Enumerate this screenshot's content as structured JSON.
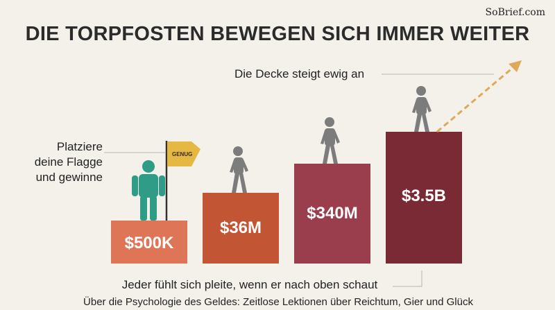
{
  "brand": "SoBrief.com",
  "title": "DIE TORPFOSTEN BEWEGEN SICH IMMER WEITER",
  "ceiling_label": "Die Decke steigt ewig an",
  "left_label_lines": [
    "Platziere",
    "deine Flagge",
    "und gewinne"
  ],
  "flag_text": "GENUG",
  "bars": [
    {
      "label": "$500K",
      "color": "#de7557"
    },
    {
      "label": "$36M",
      "color": "#c25634"
    },
    {
      "label": "$340M",
      "color": "#9a3d4c"
    },
    {
      "label": "$3.5B",
      "color": "#7a2a35"
    }
  ],
  "bottom_caption": "Jeder fühlt sich pleite, wenn er nach oben schaut",
  "book_caption": "Über die Psychologie des Geldes: Zeitlose Lektionen über Reichtum, Gier und Glück",
  "colors": {
    "background": "#f3f1ea",
    "figure_green": "#2f9c88",
    "figure_gray": "#7c7c7c",
    "flag_yellow": "#e4b843",
    "arrow": "#e0a958"
  },
  "icons": [
    "flag-icon",
    "person-icon",
    "dashed-arrow-icon"
  ]
}
